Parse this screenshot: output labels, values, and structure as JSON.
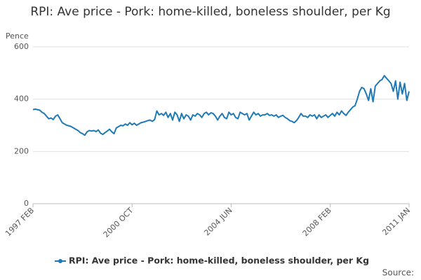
{
  "chart_data": {
    "type": "line",
    "title": "RPI: Ave price - Pork: home-killed, boneless shoulder, per Kg",
    "y_label": "Pence",
    "source": "Source:",
    "categories": [
      "1997 FEB",
      null,
      null,
      null,
      null,
      null,
      null,
      null,
      null,
      null,
      null,
      null,
      null,
      null,
      null,
      null,
      null,
      null,
      null,
      null,
      null,
      null,
      null,
      null,
      null,
      null,
      null,
      null,
      null,
      null,
      null,
      null,
      null,
      null,
      null,
      null,
      null,
      null,
      null,
      null,
      null,
      null,
      null,
      null,
      "2000 OCT",
      null,
      null,
      null,
      null,
      null,
      null,
      null,
      null,
      null,
      null,
      null,
      null,
      null,
      null,
      null,
      null,
      null,
      null,
      null,
      null,
      null,
      null,
      null,
      null,
      null,
      null,
      null,
      null,
      null,
      null,
      null,
      null,
      null,
      null,
      null,
      null,
      null,
      null,
      null,
      null,
      null,
      null,
      null,
      "2004 JUN",
      null,
      null,
      null,
      null,
      null,
      null,
      null,
      null,
      null,
      null,
      null,
      null,
      null,
      null,
      null,
      null,
      null,
      null,
      null,
      null,
      null,
      null,
      null,
      null,
      null,
      null,
      null,
      null,
      null,
      null,
      null,
      null,
      null,
      null,
      null,
      null,
      null,
      null,
      null,
      null,
      null,
      null,
      null,
      "2008 FEB",
      null,
      null,
      null,
      null,
      null,
      null,
      null,
      null,
      null,
      null,
      null,
      null,
      null,
      null,
      null,
      null,
      null,
      null,
      null,
      null,
      null,
      null,
      null,
      null,
      null,
      null,
      null,
      null,
      null,
      null,
      null,
      null,
      null,
      null,
      "2011 JAN"
    ],
    "series": [
      {
        "name": "RPI: Ave price - Pork: home-killed, boneless shoulder, per Kg",
        "color": "#1f7ab5",
        "values": [
          360,
          362,
          360,
          358,
          350,
          345,
          335,
          325,
          328,
          322,
          335,
          340,
          325,
          310,
          305,
          300,
          298,
          295,
          290,
          285,
          280,
          272,
          268,
          262,
          275,
          280,
          278,
          280,
          276,
          282,
          270,
          265,
          272,
          278,
          285,
          275,
          268,
          290,
          295,
          300,
          298,
          305,
          300,
          310,
          302,
          308,
          300,
          305,
          310,
          312,
          315,
          318,
          320,
          315,
          322,
          355,
          340,
          345,
          338,
          350,
          330,
          345,
          320,
          350,
          340,
          315,
          345,
          325,
          340,
          335,
          320,
          340,
          335,
          345,
          340,
          330,
          345,
          350,
          340,
          348,
          345,
          335,
          320,
          335,
          345,
          330,
          325,
          350,
          340,
          345,
          330,
          325,
          350,
          345,
          340,
          345,
          320,
          335,
          350,
          340,
          345,
          335,
          340,
          340,
          345,
          338,
          340,
          335,
          340,
          330,
          335,
          338,
          330,
          325,
          318,
          315,
          310,
          318,
          330,
          345,
          335,
          335,
          330,
          340,
          335,
          340,
          325,
          340,
          330,
          335,
          340,
          330,
          338,
          345,
          335,
          350,
          340,
          355,
          345,
          338,
          350,
          360,
          370,
          375,
          400,
          430,
          445,
          440,
          420,
          395,
          440,
          390,
          450,
          460,
          470,
          475,
          490,
          480,
          470,
          460,
          430,
          470,
          400,
          465,
          420,
          460,
          395,
          430
        ]
      }
    ],
    "ylim": [
      0,
      600
    ],
    "yticks": [
      0,
      200,
      400,
      600
    ],
    "grid": true
  }
}
